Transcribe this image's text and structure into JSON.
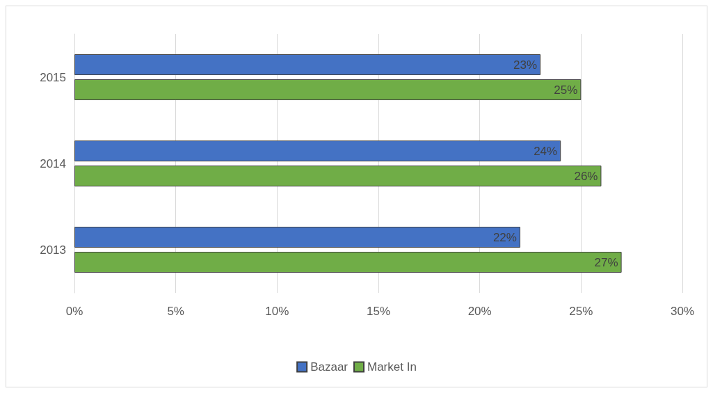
{
  "chart_data": {
    "type": "bar",
    "orientation": "horizontal",
    "categories": [
      "2015",
      "2014",
      "2013"
    ],
    "series": [
      {
        "name": "Bazaar",
        "color": "#4472c4",
        "values": [
          23,
          24,
          22
        ],
        "value_labels": [
          "23%",
          "24%",
          "22%"
        ]
      },
      {
        "name": "Market In",
        "color": "#70ad47",
        "values": [
          25,
          26,
          27
        ],
        "value_labels": [
          "25%",
          "26%",
          "27%"
        ]
      }
    ],
    "xlim": [
      0,
      30
    ],
    "xticks": [
      {
        "value": 0,
        "label": "0%"
      },
      {
        "value": 5,
        "label": "5%"
      },
      {
        "value": 10,
        "label": "10%"
      },
      {
        "value": 15,
        "label": "15%"
      },
      {
        "value": 20,
        "label": "20%"
      },
      {
        "value": 25,
        "label": "25%"
      },
      {
        "value": 30,
        "label": "30%"
      }
    ],
    "grid": "x",
    "legend": "bottom"
  }
}
